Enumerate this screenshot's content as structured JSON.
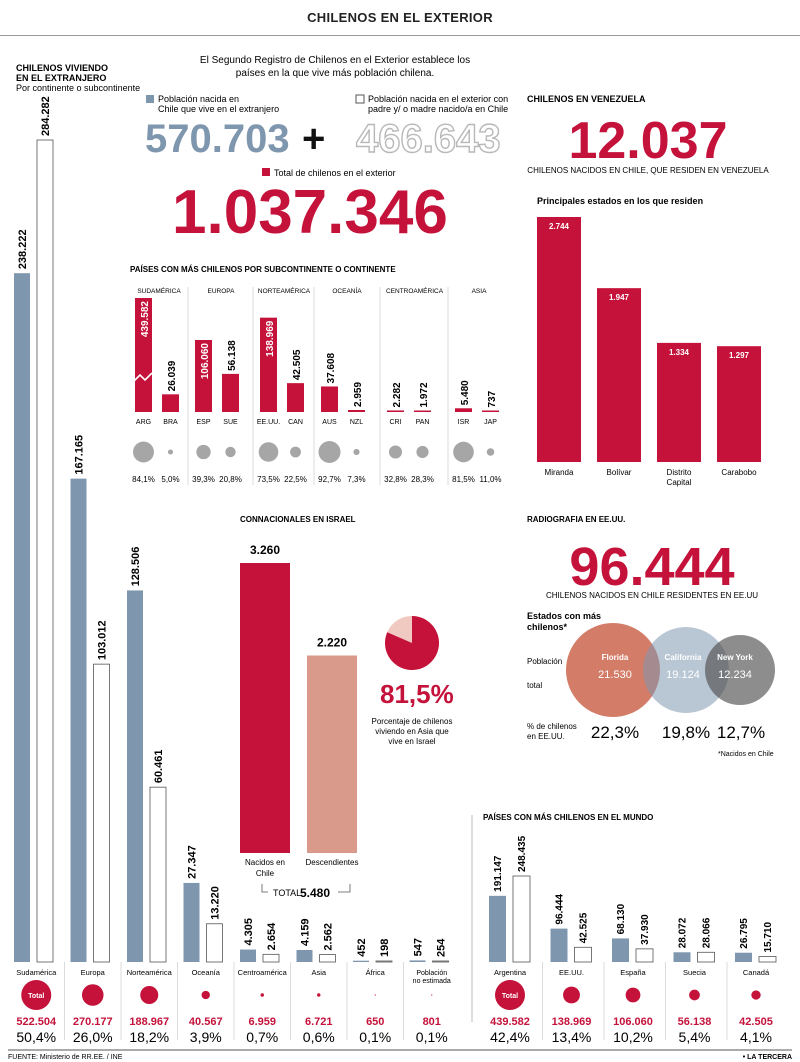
{
  "header": {
    "title": "CHILENOS EN EL EXTERIOR"
  },
  "intro": "El Segundo Registro de Chilenos en el Exterior establece los países en la que vive más población chilena.",
  "colors": {
    "born": "#7f97ae",
    "total": "#c4123a",
    "desc": "#d9998b",
    "circle": "#a6a6a6",
    "line": "#555555"
  },
  "left_chart": {
    "title_1": "CHILENOS VIVIENDO",
    "title_2": "EN EL EXTRANJERO",
    "subtitle": "Por continente o subcontinente"
  },
  "top": {
    "born_legend_1": "Población nacida en",
    "born_legend_2": "Chile que vive en el extranjero",
    "born_value": "570.703",
    "parent_legend_1": "Población nacida en el exterior con",
    "parent_legend_2": "padre y/ o madre nacido/a en Chile",
    "parent_value": "466.643",
    "plus": "+",
    "total_legend": "Total de chilenos en el exterior",
    "total_value": "1.037.346"
  },
  "subcontinent": {
    "title": "PAÍSES CON MÁS CHILENOS POR SUBCONTINENTE O CONTINENTE"
  },
  "venezuela": {
    "title": "CHILENOS EN VENEZUELA",
    "value": "12.037",
    "caption": "CHILENOS NACIDOS EN CHILE, QUE RESIDEN EN VENEZUELA",
    "states_title": "Principales estados en los que residen"
  },
  "israel": {
    "title": "CONNACIONALES EN ISRAEL",
    "total_label": "TOTAL",
    "total_value": "5.480",
    "pct": "81,5%",
    "pct_caption_1": "Porcentaje de chilenos",
    "pct_caption_2": "viviendo en Asia que",
    "pct_caption_3": "vive en Israel"
  },
  "usa": {
    "title": "RADIOGRAFIA EN EE.UU.",
    "value": "96.444",
    "caption": "CHILENOS NACIDOS EN CHILE RESIDENTES EN EE.UU",
    "states_title_1": "Estados con más",
    "states_title_2": "chilenos*",
    "row_pop_1": "Población",
    "row_pop_2": "total",
    "row_pct_1": "% de chilenos",
    "row_pct_2": "en EE.UU.",
    "footnote": "*Nacidos en Chile"
  },
  "world": {
    "title": "PAÍSES CON MÁS CHILENOS EN EL MUNDO"
  },
  "footer": {
    "source": "FUENTE: Ministerio de RR.EE. / INE",
    "brand": "• LA TERCERA"
  },
  "chart_data": [
    {
      "type": "bar",
      "name": "continents",
      "categories": [
        "Sudamérica",
        "Europa",
        "Norteamérica",
        "Oceanía",
        "Centroamérica",
        "Asia",
        "África",
        "Población no estimada"
      ],
      "series": [
        {
          "values": [
            238222,
            167165,
            128506,
            27347,
            4305,
            4159,
            452,
            547
          ]
        },
        {
          "values": [
            284282,
            103012,
            60461,
            13220,
            2654,
            2562,
            198,
            254
          ]
        }
      ],
      "labels_born": [
        "238.222",
        "167.165",
        "128.506",
        "27.347",
        "4.305",
        "4.159",
        "452",
        "547"
      ],
      "labels_parent": [
        "284.282",
        "103.012",
        "60.461",
        "13.220",
        "2.654",
        "2.562",
        "198",
        "254"
      ],
      "totals": [
        "522.504",
        "270.177",
        "188.967",
        "40.567",
        "6.959",
        "6.721",
        "650",
        "801"
      ],
      "pcts": [
        "50,4%",
        "26,0%",
        "18,2%",
        "3,9%",
        "0,7%",
        "0,6%",
        "0,1%",
        "0,1%"
      ],
      "total_badge": "Total"
    },
    {
      "type": "bar",
      "name": "subcontinent",
      "groups": [
        {
          "name": "SUDAMÉRICA",
          "items": [
            {
              "c": "ARG",
              "v": 439582,
              "l": "439.582",
              "p": "84,1%",
              "break": true
            },
            {
              "c": "BRA",
              "v": 26039,
              "l": "26.039",
              "p": "5,0%"
            }
          ]
        },
        {
          "name": "EUROPA",
          "items": [
            {
              "c": "ESP",
              "v": 106060,
              "l": "106.060",
              "p": "39,3%"
            },
            {
              "c": "SUE",
              "v": 56138,
              "l": "56.138",
              "p": "20,8%"
            }
          ]
        },
        {
          "name": "NORTEAMÉRICA",
          "items": [
            {
              "c": "EE.UU.",
              "v": 138969,
              "l": "138.969",
              "p": "73,5%"
            },
            {
              "c": "CAN",
              "v": 42505,
              "l": "42.505",
              "p": "22,5%"
            }
          ]
        },
        {
          "name": "OCEANÍA",
          "items": [
            {
              "c": "AUS",
              "v": 37608,
              "l": "37.608",
              "p": "92,7%"
            },
            {
              "c": "NZL",
              "v": 2959,
              "l": "2.959",
              "p": "7,3%"
            }
          ]
        },
        {
          "name": "CENTROAMÉRICA",
          "items": [
            {
              "c": "CRI",
              "v": 2282,
              "l": "2.282",
              "p": "32,8%"
            },
            {
              "c": "PAN",
              "v": 1972,
              "l": "1.972",
              "p": "28,3%"
            }
          ]
        },
        {
          "name": "ASIA",
          "items": [
            {
              "c": "ISR",
              "v": 5480,
              "l": "5.480",
              "p": "81,5%"
            },
            {
              "c": "JAP",
              "v": 737,
              "l": "737",
              "p": "11,0%"
            }
          ]
        }
      ]
    },
    {
      "type": "bar",
      "name": "venezuela",
      "categories": [
        "Miranda",
        "Bolívar",
        "Distrito Capital",
        "Carabobo"
      ],
      "values": [
        2744,
        1947,
        1334,
        1297
      ],
      "labels": [
        "2.744",
        "1.947",
        "1.334",
        "1.297"
      ]
    },
    {
      "type": "bar",
      "name": "israel",
      "categories": [
        "Nacidos en Chile",
        "Descendientes"
      ],
      "values": [
        3260,
        2220
      ],
      "labels": [
        "3.260",
        "2.220"
      ]
    },
    {
      "type": "pie",
      "name": "israel_pie",
      "values": [
        81.5,
        18.5
      ]
    },
    {
      "type": "bar",
      "name": "usa_states",
      "categories": [
        "Florida",
        "California",
        "New York"
      ],
      "values": [
        21530,
        19124,
        12234
      ],
      "labels": [
        "21.530",
        "19.124",
        "12.234"
      ],
      "pcts": [
        "22,3%",
        "19,8%",
        "12,7%"
      ]
    },
    {
      "type": "bar",
      "name": "world",
      "categories": [
        "Argentina",
        "EE.UU.",
        "España",
        "Suecia",
        "Canadá"
      ],
      "series": [
        {
          "values": [
            191147,
            96444,
            68130,
            28072,
            26795
          ]
        },
        {
          "values": [
            248435,
            42525,
            37930,
            28066,
            15710
          ]
        }
      ],
      "labels_born": [
        "191.147",
        "96.444",
        "68.130",
        "28.072",
        "26.795"
      ],
      "labels_parent": [
        "248.435",
        "42.525",
        "37.930",
        "28.066",
        "15.710"
      ],
      "totals": [
        "439.582",
        "138.969",
        "106.060",
        "56.138",
        "42.505"
      ],
      "pcts": [
        "42,4%",
        "13,4%",
        "10,2%",
        "5,4%",
        "4,1%"
      ],
      "total_badge": "Total"
    }
  ]
}
